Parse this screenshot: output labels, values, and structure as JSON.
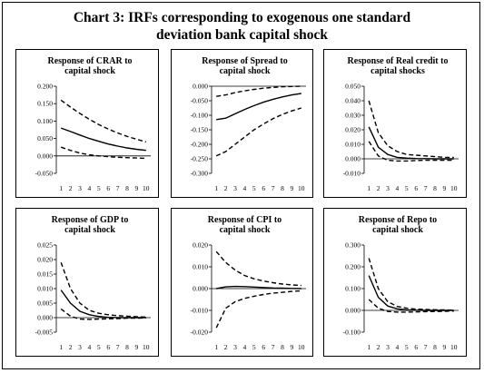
{
  "title_line1": "Chart 3: IRFs corresponding to exogenous one standard",
  "title_line2": "deviation bank capital shock",
  "chart_data": [
    {
      "type": "line",
      "title_lines": [
        "Response of CRAR to",
        "capital shock"
      ],
      "x": [
        1,
        2,
        3,
        4,
        5,
        6,
        7,
        8,
        9,
        10
      ],
      "yticks": [
        "0.200",
        "0.150",
        "0.100",
        "0.050",
        "0.000",
        "-0.050"
      ],
      "ylim": [
        -0.05,
        0.2
      ],
      "series": [
        {
          "values": [
            0.08,
            0.07,
            0.06,
            0.05,
            0.042,
            0.034,
            0.028,
            0.023,
            0.019,
            0.016
          ],
          "style": "solid"
        },
        {
          "values": [
            0.16,
            0.14,
            0.122,
            0.105,
            0.09,
            0.077,
            0.066,
            0.056,
            0.048,
            0.04
          ],
          "style": "dashed"
        },
        {
          "values": [
            0.025,
            0.016,
            0.008,
            0.003,
            0.0,
            -0.002,
            -0.004,
            -0.005,
            -0.006,
            -0.007
          ],
          "style": "dashed"
        }
      ]
    },
    {
      "type": "line",
      "title_lines": [
        "Response of Spread to",
        "capital shock"
      ],
      "x": [
        1,
        2,
        3,
        4,
        5,
        6,
        7,
        8,
        9,
        10
      ],
      "yticks": [
        "0.000",
        "-0.050",
        "-0.100",
        "-0.150",
        "-0.200",
        "-0.250",
        "-0.300"
      ],
      "ylim": [
        -0.3,
        0.0
      ],
      "series": [
        {
          "values": [
            -0.115,
            -0.11,
            -0.095,
            -0.08,
            -0.067,
            -0.055,
            -0.045,
            -0.037,
            -0.03,
            -0.025
          ],
          "style": "solid"
        },
        {
          "values": [
            -0.24,
            -0.225,
            -0.2,
            -0.175,
            -0.15,
            -0.13,
            -0.112,
            -0.097,
            -0.085,
            -0.075
          ],
          "style": "dashed"
        },
        {
          "values": [
            -0.035,
            -0.03,
            -0.022,
            -0.016,
            -0.011,
            -0.007,
            -0.004,
            -0.002,
            -0.001,
            0.0
          ],
          "style": "dashed"
        }
      ]
    },
    {
      "type": "line",
      "title_lines": [
        "Response of Real credit to",
        "capital shocks"
      ],
      "x": [
        1,
        2,
        3,
        4,
        5,
        6,
        7,
        8,
        9,
        10
      ],
      "yticks": [
        "0.050",
        "0.040",
        "0.030",
        "0.020",
        "0.010",
        "0.000",
        "-0.010"
      ],
      "ylim": [
        -0.01,
        0.05
      ],
      "series": [
        {
          "values": [
            0.022,
            0.008,
            0.003,
            0.001,
            0.0005,
            0.0002,
            0.0001,
            0.0,
            0.0,
            0.0
          ],
          "style": "solid"
        },
        {
          "values": [
            0.04,
            0.018,
            0.009,
            0.005,
            0.003,
            0.0025,
            0.002,
            0.0015,
            0.001,
            0.001
          ],
          "style": "dashed"
        },
        {
          "values": [
            0.012,
            0.002,
            -0.001,
            -0.0015,
            -0.0015,
            -0.0012,
            -0.001,
            -0.001,
            -0.001,
            -0.001
          ],
          "style": "dashed"
        }
      ]
    },
    {
      "type": "line",
      "title_lines": [
        "Response of GDP to",
        "capital shock"
      ],
      "x": [
        1,
        2,
        3,
        4,
        5,
        6,
        7,
        8,
        9,
        10
      ],
      "yticks": [
        "0.025",
        "0.020",
        "0.015",
        "0.010",
        "0.005",
        "0.000",
        "-0.005"
      ],
      "ylim": [
        -0.005,
        0.025
      ],
      "series": [
        {
          "values": [
            0.0095,
            0.005,
            0.0022,
            0.001,
            0.0004,
            0.0001,
            0.0,
            0.0,
            0.0,
            0.0
          ],
          "style": "solid"
        },
        {
          "values": [
            0.019,
            0.01,
            0.005,
            0.0025,
            0.0015,
            0.001,
            0.0007,
            0.0005,
            0.0003,
            0.0002
          ],
          "style": "dashed"
        },
        {
          "values": [
            0.003,
            0.0005,
            -0.0005,
            -0.0006,
            -0.0005,
            -0.0004,
            -0.0003,
            -0.0002,
            -0.0002,
            -0.0001
          ],
          "style": "dashed"
        }
      ]
    },
    {
      "type": "line",
      "title_lines": [
        "Response of CPI to",
        "capital shock"
      ],
      "x": [
        1,
        2,
        3,
        4,
        5,
        6,
        7,
        8,
        9,
        10
      ],
      "yticks": [
        "0.020",
        "0.010",
        "0.000",
        "-0.010",
        "-0.020"
      ],
      "ylim": [
        -0.02,
        0.02
      ],
      "series": [
        {
          "values": [
            0.0,
            0.0008,
            0.001,
            0.0009,
            0.0007,
            0.0005,
            0.0003,
            0.0002,
            0.0001,
            0.0
          ],
          "style": "solid"
        },
        {
          "values": [
            0.017,
            0.012,
            0.0085,
            0.006,
            0.0045,
            0.0035,
            0.0027,
            0.0021,
            0.0017,
            0.0014
          ],
          "style": "dashed"
        },
        {
          "values": [
            -0.018,
            -0.009,
            -0.006,
            -0.0045,
            -0.0035,
            -0.0027,
            -0.0021,
            -0.0017,
            -0.0013,
            -0.001
          ],
          "style": "dashed"
        }
      ]
    },
    {
      "type": "line",
      "title_lines": [
        "Response of Repo to",
        "capital shock"
      ],
      "x": [
        1,
        2,
        3,
        4,
        5,
        6,
        7,
        8,
        9,
        10
      ],
      "yticks": [
        "0.300",
        "0.200",
        "0.100",
        "0.000",
        "-0.100"
      ],
      "ylim": [
        -0.1,
        0.3
      ],
      "series": [
        {
          "values": [
            0.16,
            0.06,
            0.02,
            0.007,
            0.002,
            0.001,
            0.0,
            0.0,
            0.0,
            0.0
          ],
          "style": "solid"
        },
        {
          "values": [
            0.24,
            0.1,
            0.04,
            0.018,
            0.01,
            0.006,
            0.004,
            0.003,
            0.002,
            0.001
          ],
          "style": "dashed"
        },
        {
          "values": [
            0.05,
            0.01,
            -0.005,
            -0.008,
            -0.008,
            -0.007,
            -0.006,
            -0.005,
            -0.004,
            -0.003
          ],
          "style": "dashed"
        }
      ]
    }
  ]
}
